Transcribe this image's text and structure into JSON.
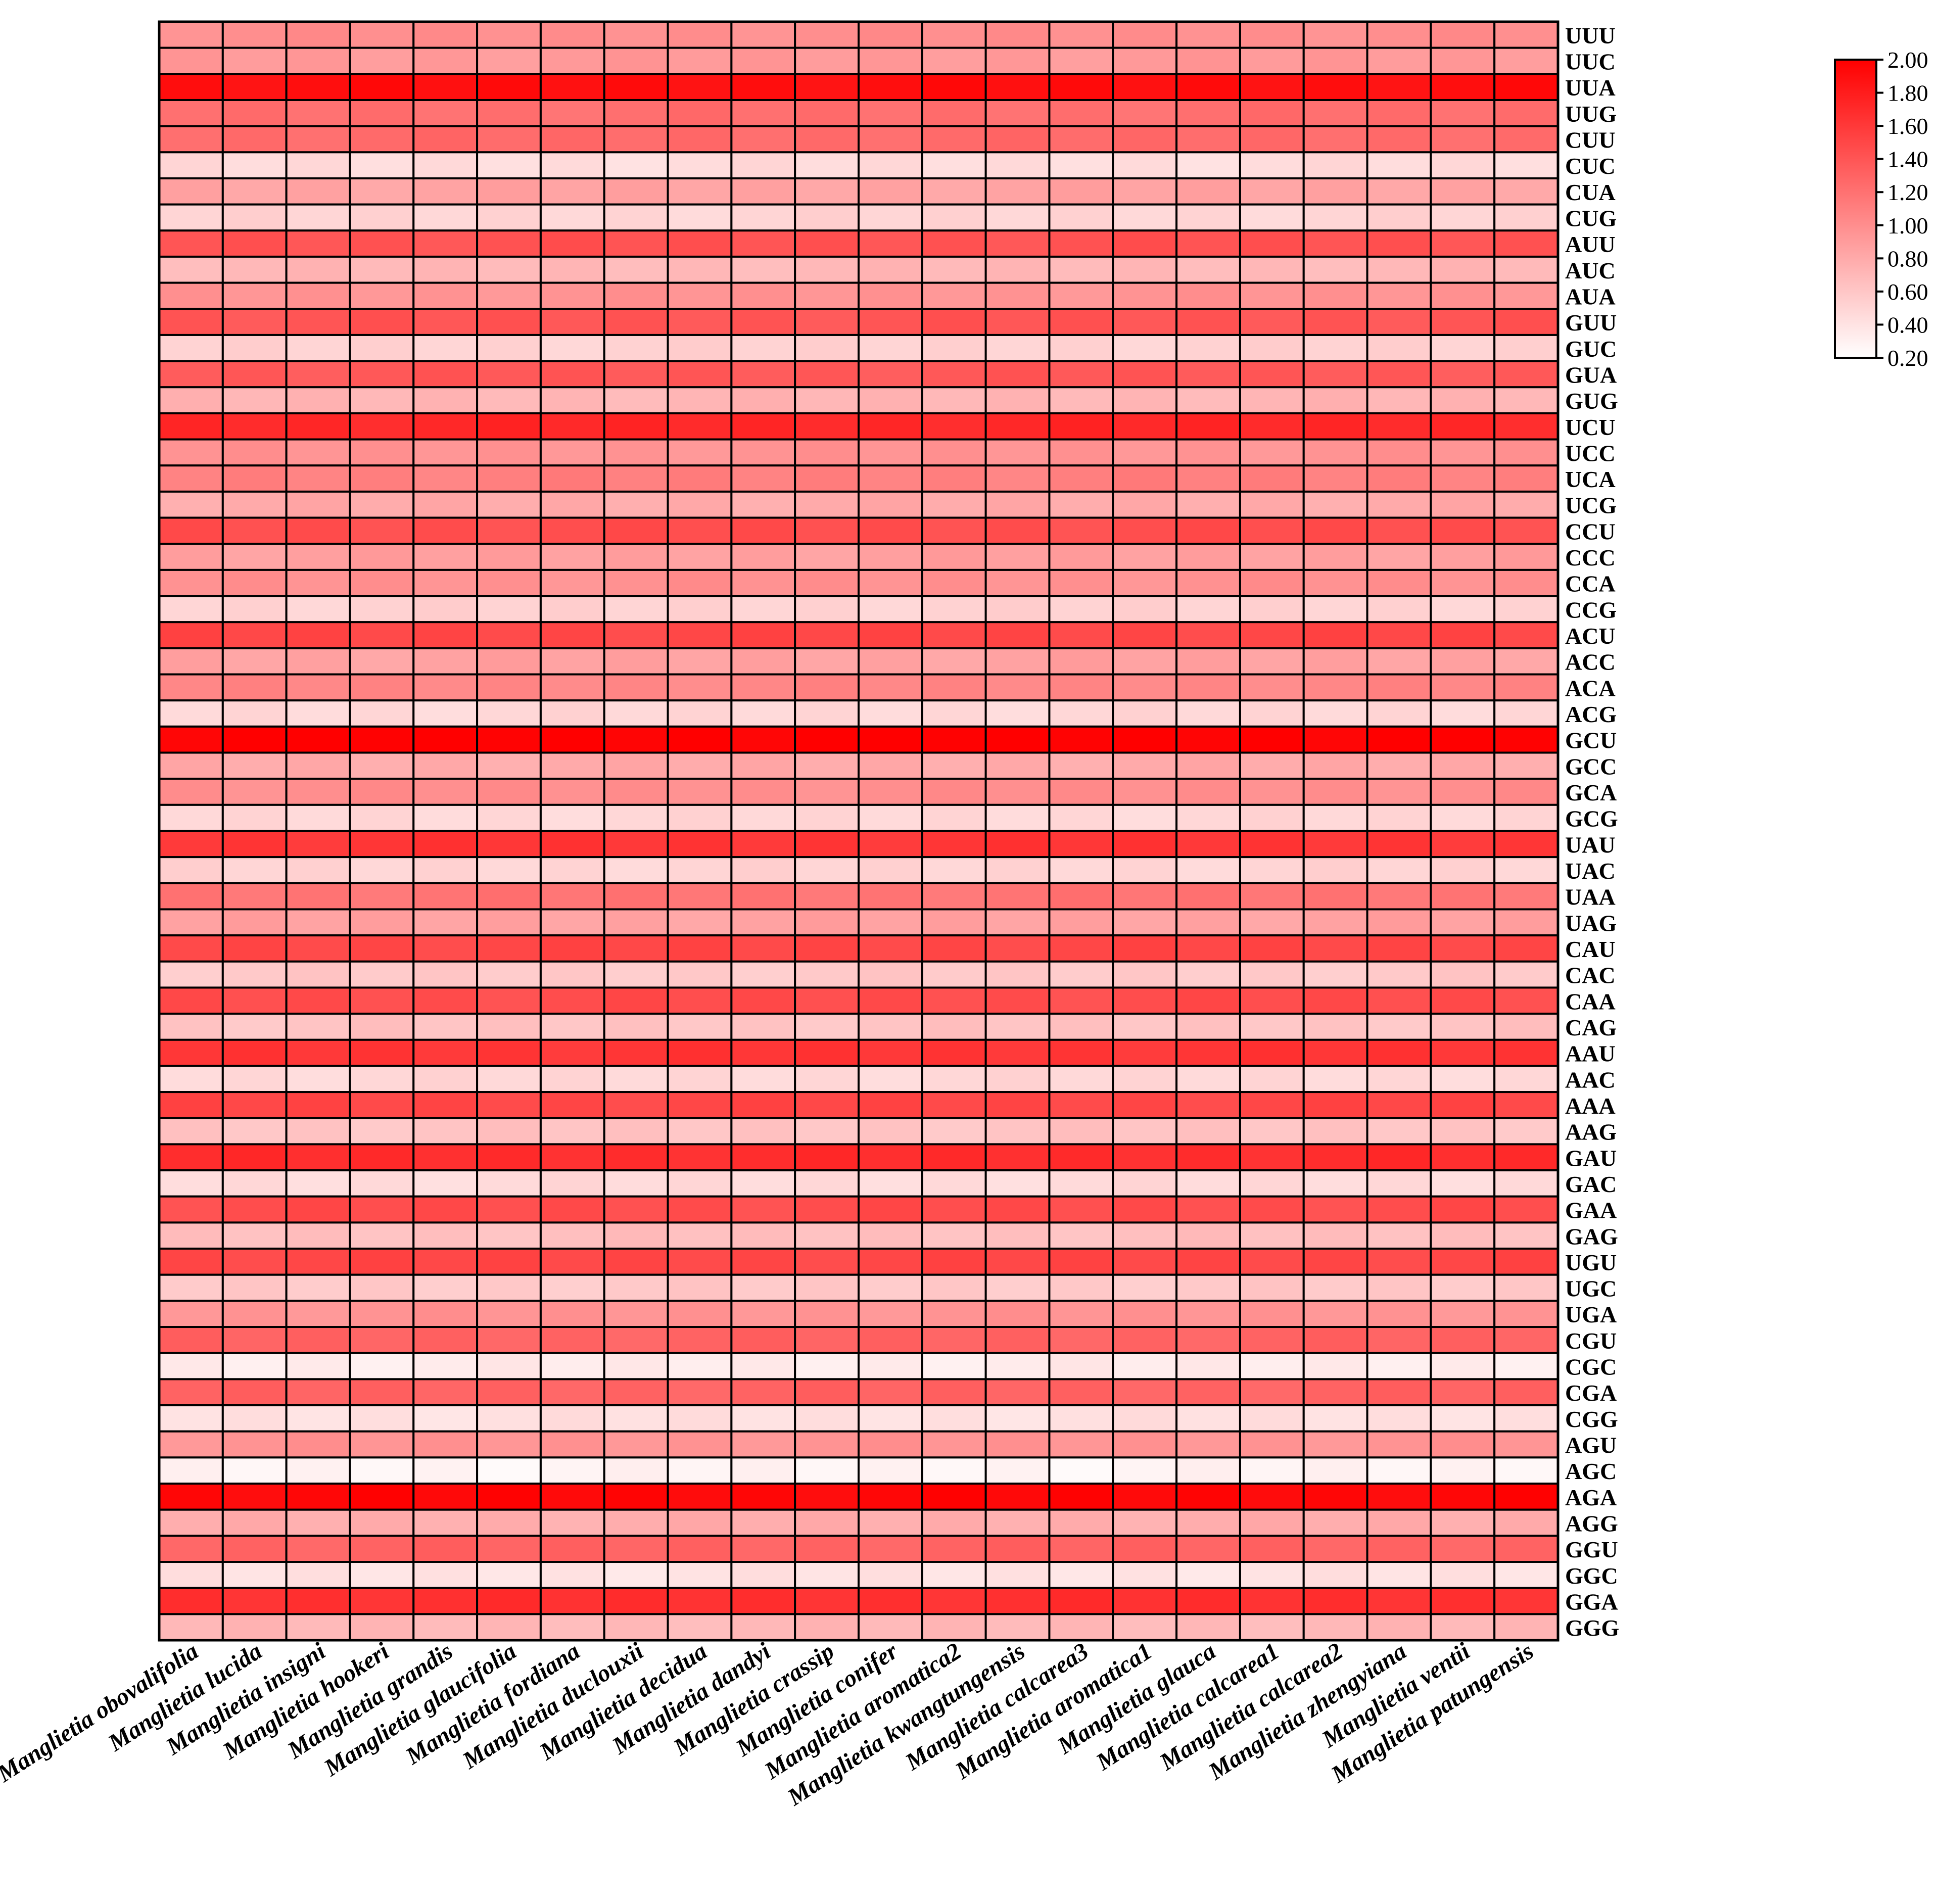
{
  "chart_data": {
    "type": "heatmap",
    "title": "",
    "xlabel": "",
    "ylabel": "",
    "columns": [
      "Manglietia obovalifolia",
      "Manglietia lucida",
      "Manglietia insigni",
      "Manglietia hookeri",
      "Manglietia grandis",
      "Manglietia glaucifolia",
      "Manglietia fordiana",
      "Manglietia duclouxii",
      "Manglietia decidua",
      "Manglietia dandyi",
      "Manglietia crassip",
      "Manglietia conifer",
      "Manglietia aromatica2",
      "Manglietia kwangtungensis",
      "Manglietia calcarea3",
      "Manglietia aromatica1",
      "Manglietia glauca",
      "Manglietia calcarea1",
      "Manglietia calcarea2",
      "Manglietia zhengyiana",
      "Manglietia ventii",
      "Manglietia patungensis"
    ],
    "rows": [
      "UUU",
      "UUC",
      "UUA",
      "UUG",
      "CUU",
      "CUC",
      "CUA",
      "CUG",
      "AUU",
      "AUC",
      "AUA",
      "GUU",
      "GUC",
      "GUA",
      "GUG",
      "UCU",
      "UCC",
      "UCA",
      "UCG",
      "CCU",
      "CCC",
      "CCA",
      "CCG",
      "ACU",
      "ACC",
      "ACA",
      "ACG",
      "GCU",
      "GCC",
      "GCA",
      "GCG",
      "UAU",
      "UAC",
      "UAA",
      "UAG",
      "CAU",
      "CAC",
      "CAA",
      "CAG",
      "AAU",
      "AAC",
      "AAA",
      "AAG",
      "GAU",
      "GAC",
      "GAA",
      "GAG",
      "UGU",
      "UGC",
      "UGA",
      "CGU",
      "CGC",
      "CGA",
      "CGG",
      "AGU",
      "AGC",
      "AGA",
      "AGG",
      "GGU",
      "GGC",
      "GGA",
      "GGG"
    ],
    "row_values": [
      1.0,
      0.92,
      1.9,
      1.22,
      1.25,
      0.45,
      0.85,
      0.5,
      1.42,
      0.7,
      0.96,
      1.4,
      0.52,
      1.38,
      0.72,
      1.72,
      0.96,
      1.1,
      0.8,
      1.45,
      0.88,
      0.98,
      0.52,
      1.5,
      0.86,
      1.05,
      0.48,
      2.0,
      0.8,
      1.0,
      0.48,
      1.62,
      0.5,
      1.18,
      0.86,
      1.5,
      0.58,
      1.46,
      0.62,
      1.62,
      0.48,
      1.5,
      0.62,
      1.68,
      0.46,
      1.46,
      0.65,
      1.5,
      0.58,
      0.96,
      1.3,
      0.34,
      1.3,
      0.42,
      0.96,
      0.28,
      1.95,
      0.78,
      1.3,
      0.4,
      1.66,
      0.7
    ],
    "color_scale": {
      "min": 0.2,
      "max": 2.0,
      "low_color": "#ffffff",
      "high_color": "#ff0000"
    },
    "colorbar_ticks": [
      "2.00",
      "1.80",
      "1.60",
      "1.40",
      "1.20",
      "1.00",
      "0.80",
      "0.60",
      "0.40",
      "0.20"
    ],
    "legend_position": "top-right",
    "grid": true
  }
}
